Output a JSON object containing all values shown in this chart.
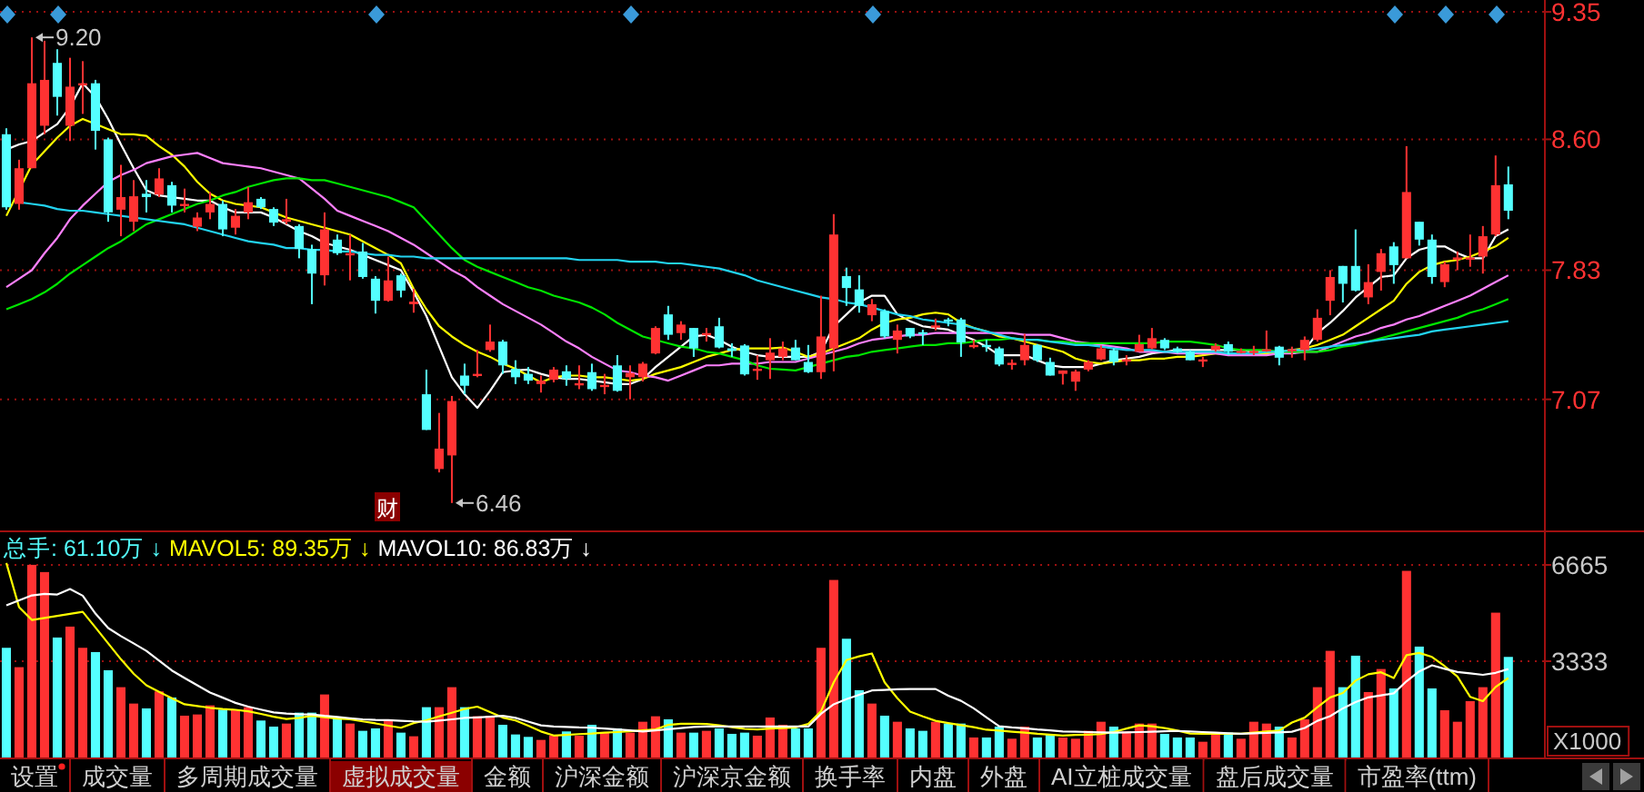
{
  "chart_data": [
    {
      "type": "candlestick",
      "categories": [
        null,
        null,
        null,
        null,
        null,
        null,
        null,
        null,
        null,
        null,
        null,
        null,
        null,
        null,
        null,
        null,
        null,
        null,
        null,
        null,
        null,
        null,
        null,
        null,
        null,
        null,
        null,
        null,
        null,
        null,
        null,
        null,
        null,
        null,
        null,
        null,
        null,
        null,
        null,
        null,
        null,
        null,
        null,
        null,
        null,
        null,
        null,
        null,
        null,
        null,
        null,
        null,
        null,
        null,
        null,
        null,
        null,
        null,
        null,
        null,
        null,
        null,
        null,
        null,
        null,
        null,
        null,
        null,
        null,
        null,
        null,
        null,
        null,
        null,
        null,
        null,
        null,
        null,
        null,
        null,
        null,
        null,
        null,
        null,
        null,
        null,
        null,
        null,
        null,
        null,
        null,
        null,
        null,
        null,
        null,
        null,
        null,
        null,
        null,
        null,
        null,
        null,
        null,
        null,
        null,
        null,
        null,
        null,
        null,
        null,
        null,
        null,
        null,
        null,
        null,
        null,
        null,
        null,
        null
      ],
      "ylim": [
        6.32,
        9.42
      ],
      "yticks": [
        9.35,
        {
          "value": 8.6,
          "label": "8.60"
        },
        7.83,
        7.07
      ],
      "tick_labels": "y",
      "grid": "y",
      "ohlc": [
        [
          8.63,
          8.665,
          8.186,
          8.2
        ],
        [
          8.22,
          8.48,
          8.186,
          8.43
        ],
        [
          8.43,
          9.2,
          8.43,
          8.93
        ],
        [
          8.68,
          9.18,
          8.63,
          8.95
        ],
        [
          9.05,
          9.13,
          8.74,
          8.85
        ],
        [
          8.68,
          9.08,
          8.59,
          8.91
        ],
        [
          8.92,
          9.06,
          8.75,
          8.93
        ],
        [
          8.93,
          8.95,
          8.54,
          8.65
        ],
        [
          8.6,
          8.61,
          8.115,
          8.17
        ],
        [
          8.186,
          8.45,
          8.03,
          8.26
        ],
        [
          8.115,
          8.36,
          8.06,
          8.265
        ],
        [
          8.28,
          8.36,
          8.17,
          8.26
        ],
        [
          8.275,
          8.43,
          8.26,
          8.37
        ],
        [
          8.33,
          8.35,
          8.17,
          8.21
        ],
        [
          8.21,
          8.31,
          8.17,
          8.22
        ],
        [
          8.086,
          8.17,
          8.06,
          8.14
        ],
        [
          8.17,
          8.29,
          8.13,
          8.22
        ],
        [
          8.22,
          8.24,
          8.03,
          8.07
        ],
        [
          8.08,
          8.19,
          8.04,
          8.15
        ],
        [
          8.17,
          8.32,
          8.13,
          8.23
        ],
        [
          8.25,
          8.26,
          8.19,
          8.2
        ],
        [
          8.19,
          8.2,
          8.09,
          8.11
        ],
        [
          8.115,
          8.25,
          8.1,
          8.13
        ],
        [
          8.09,
          8.1,
          7.9,
          7.955
        ],
        [
          7.955,
          7.98,
          7.63,
          7.81
        ],
        [
          7.8,
          8.17,
          7.74,
          8.07
        ],
        [
          8.01,
          8.04,
          7.92,
          7.93
        ],
        [
          7.92,
          8.04,
          7.77,
          7.93
        ],
        [
          7.94,
          7.99,
          7.78,
          7.79
        ],
        [
          7.78,
          7.795,
          7.575,
          7.65
        ],
        [
          7.65,
          7.91,
          7.645,
          7.77
        ],
        [
          7.8,
          7.81,
          7.67,
          7.71
        ],
        [
          7.63,
          7.72,
          7.58,
          7.645
        ],
        [
          7.1,
          7.245,
          6.89,
          6.89
        ],
        [
          6.66,
          6.99,
          6.64,
          6.78
        ],
        [
          6.74,
          7.09,
          6.46,
          7.06
        ],
        [
          7.21,
          7.28,
          7.1,
          7.15
        ],
        [
          7.21,
          7.36,
          7.2,
          7.22
        ],
        [
          7.36,
          7.51,
          7.35,
          7.41
        ],
        [
          7.41,
          7.42,
          7.22,
          7.27
        ],
        [
          7.25,
          7.3,
          7.16,
          7.2
        ],
        [
          7.22,
          7.26,
          7.16,
          7.18
        ],
        [
          7.16,
          7.21,
          7.11,
          7.18
        ],
        [
          7.185,
          7.26,
          7.17,
          7.245
        ],
        [
          7.235,
          7.27,
          7.15,
          7.19
        ],
        [
          7.16,
          7.27,
          7.13,
          7.165
        ],
        [
          7.23,
          7.28,
          7.12,
          7.13
        ],
        [
          7.145,
          7.22,
          7.1,
          7.155
        ],
        [
          7.27,
          7.33,
          7.115,
          7.12
        ],
        [
          7.2,
          7.27,
          7.07,
          7.225
        ],
        [
          7.2,
          7.29,
          7.175,
          7.28
        ],
        [
          7.34,
          7.5,
          7.335,
          7.49
        ],
        [
          7.57,
          7.62,
          7.42,
          7.45
        ],
        [
          7.46,
          7.53,
          7.42,
          7.51
        ],
        [
          7.49,
          7.49,
          7.32,
          7.37
        ],
        [
          7.455,
          7.49,
          7.41,
          7.46
        ],
        [
          7.5,
          7.55,
          7.37,
          7.375
        ],
        [
          7.37,
          7.4,
          7.32,
          7.355
        ],
        [
          7.387,
          7.395,
          7.21,
          7.217
        ],
        [
          7.245,
          7.33,
          7.185,
          7.25
        ],
        [
          7.3,
          7.43,
          7.19,
          7.345
        ],
        [
          7.32,
          7.41,
          7.3,
          7.37
        ],
        [
          7.375,
          7.42,
          7.3,
          7.3
        ],
        [
          7.29,
          7.39,
          7.225,
          7.23
        ],
        [
          7.23,
          7.68,
          7.19,
          7.44
        ],
        [
          7.37,
          8.16,
          7.235,
          8.04
        ],
        [
          7.795,
          7.845,
          7.62,
          7.725
        ],
        [
          7.717,
          7.8,
          7.58,
          7.62
        ],
        [
          7.565,
          7.66,
          7.53,
          7.63
        ],
        [
          7.59,
          7.6,
          7.43,
          7.44
        ],
        [
          7.42,
          7.51,
          7.34,
          7.475
        ],
        [
          7.49,
          7.49,
          7.43,
          7.44
        ],
        [
          7.465,
          7.48,
          7.39,
          7.455
        ],
        [
          7.5,
          7.545,
          7.475,
          7.505
        ],
        [
          7.54,
          7.55,
          7.5,
          7.535
        ],
        [
          7.54,
          7.55,
          7.32,
          7.405
        ],
        [
          7.385,
          7.42,
          7.37,
          7.39
        ],
        [
          7.39,
          7.42,
          7.35,
          7.385
        ],
        [
          7.37,
          7.38,
          7.265,
          7.275
        ],
        [
          7.28,
          7.305,
          7.245,
          7.285
        ],
        [
          7.3,
          7.455,
          7.27,
          7.39
        ],
        [
          7.39,
          7.395,
          7.29,
          7.3
        ],
        [
          7.29,
          7.315,
          7.21,
          7.21
        ],
        [
          7.22,
          7.24,
          7.157,
          7.24
        ],
        [
          7.174,
          7.245,
          7.12,
          7.234
        ],
        [
          7.245,
          7.3,
          7.235,
          7.29
        ],
        [
          7.305,
          7.387,
          7.3,
          7.37
        ],
        [
          7.36,
          7.37,
          7.27,
          7.29
        ],
        [
          7.3,
          7.33,
          7.27,
          7.305
        ],
        [
          7.35,
          7.45,
          7.35,
          7.395
        ],
        [
          7.37,
          7.49,
          7.365,
          7.43
        ],
        [
          7.42,
          7.43,
          7.36,
          7.37
        ],
        [
          7.37,
          7.38,
          7.34,
          7.35
        ],
        [
          7.35,
          7.36,
          7.3,
          7.3
        ],
        [
          7.3,
          7.32,
          7.26,
          7.305
        ],
        [
          7.36,
          7.4,
          7.35,
          7.385
        ],
        [
          7.395,
          7.41,
          7.33,
          7.35
        ],
        [
          7.35,
          7.37,
          7.34,
          7.355
        ],
        [
          7.35,
          7.385,
          7.33,
          7.355
        ],
        [
          7.36,
          7.475,
          7.35,
          7.365
        ],
        [
          7.38,
          7.385,
          7.27,
          7.315
        ],
        [
          7.355,
          7.38,
          7.315,
          7.365
        ],
        [
          7.36,
          7.44,
          7.3,
          7.42
        ],
        [
          7.42,
          7.6,
          7.41,
          7.55
        ],
        [
          7.65,
          7.83,
          7.565,
          7.79
        ],
        [
          7.855,
          7.855,
          7.64,
          7.75
        ],
        [
          7.855,
          8.07,
          7.705,
          7.71
        ],
        [
          7.67,
          7.865,
          7.63,
          7.76
        ],
        [
          7.82,
          7.955,
          7.71,
          7.93
        ],
        [
          7.97,
          7.995,
          7.75,
          7.86
        ],
        [
          7.9,
          8.56,
          7.9,
          8.29
        ],
        [
          8.115,
          8.115,
          7.975,
          8.01
        ],
        [
          8.01,
          8.04,
          7.75,
          7.79
        ],
        [
          7.76,
          7.88,
          7.73,
          7.865
        ],
        [
          7.9,
          7.94,
          7.83,
          7.905
        ],
        [
          7.9,
          8.04,
          7.85,
          7.905
        ],
        [
          7.91,
          8.09,
          7.81,
          8.03
        ],
        [
          8.04,
          8.505,
          8.03,
          8.33
        ],
        [
          8.335,
          8.44,
          8.13,
          8.18
        ]
      ],
      "series": [
        {
          "type": "line",
          "color": "#ffffff",
          "values": [
            8.54,
            8.57,
            8.59,
            8.64,
            8.69,
            8.79,
            8.93,
            8.85,
            8.72,
            8.57,
            8.43,
            8.3,
            8.27,
            8.26,
            8.25,
            8.24,
            8.24,
            8.2,
            8.17,
            8.17,
            8.17,
            8.14,
            8.1,
            8.06,
            8.03,
            7.99,
            7.97,
            7.95,
            7.92,
            7.89,
            7.86,
            7.83,
            7.7,
            7.56,
            7.38,
            7.2,
            7.1,
            7.02,
            7.12,
            7.23,
            7.24,
            7.245,
            7.22,
            7.2,
            7.19,
            7.19,
            7.18,
            7.17,
            7.16,
            7.16,
            7.19,
            7.26,
            7.32,
            7.38,
            7.44,
            7.45,
            7.42,
            7.38,
            7.35,
            7.33,
            7.32,
            7.32,
            7.32,
            7.32,
            7.35,
            7.5,
            7.57,
            7.64,
            7.68,
            7.68,
            7.57,
            7.53,
            7.5,
            7.49,
            7.48,
            7.45,
            7.42,
            7.38,
            7.33,
            7.33,
            7.33,
            7.3,
            7.27,
            7.26,
            7.26,
            7.26,
            7.28,
            7.3,
            7.31,
            7.32,
            7.34,
            7.35,
            7.36,
            7.36,
            7.36,
            7.36,
            7.36,
            7.36,
            7.35,
            7.35,
            7.35,
            7.34,
            7.36,
            7.46,
            7.52,
            7.59,
            7.67,
            7.73,
            7.79,
            7.8,
            7.9,
            7.95,
            7.97,
            7.97,
            7.93,
            7.9,
            7.9,
            8.03,
            8.07
          ]
        },
        {
          "type": "line",
          "color": "#ffff00",
          "values": [
            8.15,
            8.3,
            8.45,
            8.53,
            8.61,
            8.68,
            8.72,
            8.69,
            8.66,
            8.63,
            8.63,
            8.62,
            8.56,
            8.51,
            8.44,
            8.35,
            8.28,
            8.24,
            8.22,
            8.21,
            8.2,
            8.17,
            8.14,
            8.12,
            8.1,
            8.08,
            8.06,
            8.04,
            8,
            7.96,
            7.92,
            7.87,
            7.72,
            7.6,
            7.5,
            7.44,
            7.39,
            7.35,
            7.32,
            7.28,
            7.25,
            7.21,
            7.17,
            7.2,
            7.21,
            7.21,
            7.2,
            7.2,
            7.19,
            7.18,
            7.19,
            7.22,
            7.24,
            7.26,
            7.29,
            7.32,
            7.34,
            7.36,
            7.37,
            7.37,
            7.37,
            7.375,
            7.35,
            7.32,
            7.34,
            7.37,
            7.4,
            7.43,
            7.48,
            7.52,
            7.54,
            7.55,
            7.57,
            7.58,
            7.57,
            7.52,
            7.49,
            7.47,
            7.44,
            7.43,
            7.41,
            7.39,
            7.37,
            7.35,
            7.31,
            7.29,
            7.28,
            7.29,
            7.3,
            7.3,
            7.31,
            7.31,
            7.32,
            7.32,
            7.33,
            7.34,
            7.34,
            7.34,
            7.34,
            7.34,
            7.35,
            7.36,
            7.37,
            7.39,
            7.42,
            7.45,
            7.5,
            7.55,
            7.6,
            7.65,
            7.75,
            7.82,
            7.86,
            7.88,
            7.89,
            7.91,
            7.94,
            7.97,
            8.02
          ]
        },
        {
          "type": "line",
          "color": "#ff80ff",
          "values": [
            7.73,
            7.78,
            7.83,
            7.93,
            8.02,
            8.13,
            8.21,
            8.28,
            8.35,
            8.39,
            8.42,
            8.46,
            8.48,
            8.5,
            8.51,
            8.52,
            8.49,
            8.46,
            8.45,
            8.44,
            8.43,
            8.41,
            8.39,
            8.37,
            8.31,
            8.25,
            8.18,
            8.15,
            8.12,
            8.09,
            8.06,
            8.02,
            7.98,
            7.93,
            7.88,
            7.83,
            7.79,
            7.73,
            7.68,
            7.63,
            7.59,
            7.55,
            7.51,
            7.46,
            7.41,
            7.37,
            7.32,
            7.28,
            7.24,
            7.23,
            7.21,
            7.2,
            7.18,
            7.21,
            7.24,
            7.27,
            7.27,
            7.28,
            7.28,
            7.28,
            7.29,
            7.29,
            7.29,
            7.31,
            7.33,
            7.35,
            7.37,
            7.4,
            7.42,
            7.43,
            7.44,
            7.45,
            7.45,
            7.46,
            7.46,
            7.46,
            7.46,
            7.46,
            7.46,
            7.46,
            7.45,
            7.45,
            7.45,
            7.43,
            7.41,
            7.4,
            7.39,
            7.38,
            7.37,
            7.35,
            7.35,
            7.35,
            7.34,
            7.34,
            7.34,
            7.34,
            7.33,
            7.33,
            7.33,
            7.33,
            7.34,
            7.34,
            7.35,
            7.35,
            7.38,
            7.41,
            7.44,
            7.46,
            7.49,
            7.51,
            7.54,
            7.56,
            7.59,
            7.62,
            7.65,
            7.68,
            7.72,
            7.76,
            7.8
          ]
        },
        {
          "type": "line",
          "color": "#00e600",
          "values": [
            7.6,
            7.63,
            7.66,
            7.7,
            7.75,
            7.81,
            7.86,
            7.91,
            7.96,
            8,
            8.05,
            8.1,
            8.13,
            8.16,
            8.19,
            8.22,
            8.24,
            8.27,
            8.29,
            8.32,
            8.34,
            8.36,
            8.37,
            8.37,
            8.36,
            8.36,
            8.34,
            8.32,
            8.3,
            8.28,
            8.26,
            8.23,
            8.2,
            8.12,
            8.04,
            7.96,
            7.89,
            7.85,
            7.82,
            7.79,
            7.76,
            7.73,
            7.71,
            7.68,
            7.66,
            7.64,
            7.61,
            7.57,
            7.52,
            7.48,
            7.44,
            7.42,
            7.4,
            7.38,
            7.37,
            7.35,
            7.34,
            7.32,
            7.3,
            7.27,
            7.25,
            7.245,
            7.24,
            7.26,
            7.28,
            7.3,
            7.32,
            7.33,
            7.35,
            7.36,
            7.37,
            7.38,
            7.39,
            7.39,
            7.4,
            7.4,
            7.41,
            7.42,
            7.42,
            7.43,
            7.42,
            7.42,
            7.41,
            7.41,
            7.4,
            7.4,
            7.4,
            7.4,
            7.4,
            7.4,
            7.4,
            7.41,
            7.41,
            7.41,
            7.4,
            7.39,
            7.37,
            7.36,
            7.36,
            7.36,
            7.35,
            7.35,
            7.35,
            7.35,
            7.36,
            7.38,
            7.39,
            7.41,
            7.43,
            7.45,
            7.47,
            7.49,
            7.51,
            7.53,
            7.55,
            7.58,
            7.6,
            7.63,
            7.66
          ]
        },
        {
          "type": "line",
          "color": "#22d3f0",
          "values": [
            null,
            8.23,
            8.22,
            8.21,
            8.19,
            8.18,
            8.18,
            8.17,
            8.16,
            8.15,
            8.14,
            8.13,
            8.12,
            8.11,
            8.1,
            8.08,
            8.06,
            8.04,
            8.02,
            8,
            7.99,
            7.98,
            7.96,
            7.96,
            7.95,
            7.95,
            7.94,
            7.94,
            7.93,
            7.92,
            7.92,
            7.91,
            7.91,
            7.9,
            7.9,
            7.9,
            7.9,
            7.9,
            7.9,
            7.9,
            7.9,
            7.9,
            7.9,
            7.9,
            7.9,
            7.89,
            7.89,
            7.89,
            7.89,
            7.88,
            7.88,
            7.88,
            7.87,
            7.87,
            7.86,
            7.85,
            7.84,
            7.82,
            7.8,
            7.77,
            7.75,
            7.73,
            7.71,
            7.69,
            7.67,
            7.66,
            7.64,
            7.63,
            7.61,
            7.59,
            7.57,
            7.56,
            7.54,
            7.53,
            7.52,
            7.51,
            7.49,
            7.47,
            7.45,
            7.43,
            7.42,
            7.42,
            7.41,
            7.4,
            7.39,
            7.39,
            7.38,
            7.37,
            7.36,
            7.36,
            7.36,
            7.35,
            7.35,
            7.35,
            7.35,
            7.35,
            7.34,
            7.34,
            7.34,
            7.35,
            7.35,
            7.36,
            7.36,
            7.37,
            7.38,
            7.39,
            7.4,
            7.41,
            7.42,
            7.43,
            7.44,
            7.45,
            7.47,
            7.48,
            7.49,
            7.5,
            7.51,
            7.52,
            7.53
          ]
        }
      ],
      "annotations": [
        "9.20",
        "6.46",
        "财"
      ]
    },
    {
      "type": "bar",
      "categories": [
        null,
        null,
        null,
        null,
        null,
        null,
        null,
        null,
        null,
        null,
        null,
        null,
        null,
        null,
        null,
        null,
        null,
        null,
        null,
        null,
        null,
        null,
        null,
        null,
        null,
        null,
        null,
        null,
        null,
        null,
        null,
        null,
        null,
        null,
        null,
        null,
        null,
        null,
        null,
        null,
        null,
        null,
        null,
        null,
        null,
        null,
        null,
        null,
        null,
        null,
        null,
        null,
        null,
        null,
        null,
        null,
        null,
        null,
        null,
        null,
        null,
        null,
        null,
        null,
        null,
        null,
        null,
        null,
        null,
        null,
        null,
        null,
        null,
        null,
        null,
        null,
        null,
        null,
        null,
        null,
        null,
        null,
        null,
        null,
        null,
        null,
        null,
        null,
        null,
        null,
        null,
        null,
        null,
        null,
        null,
        null,
        null,
        null,
        null,
        null,
        null,
        null,
        null,
        null,
        null,
        null,
        null,
        null,
        null,
        null,
        null,
        null,
        null,
        null,
        null,
        null,
        null,
        null,
        null
      ],
      "ylim": [
        0,
        7670
      ],
      "yticks": [
        6665,
        3333
      ],
      "ylabel": "X1000",
      "tick_labels": "y",
      "grid": "y",
      "series": [
        {
          "values": [
            3796,
            3125,
            6668,
            6417,
            4152,
            4530,
            3796,
            3649,
            3020,
            2433,
            1866,
            1699,
            2286,
            2076,
            1447,
            1489,
            1803,
            1657,
            1657,
            1741,
            1279,
            1069,
            1174,
            1552,
            1552,
            2181,
            1384,
            1174,
            923,
            1007,
            1321,
            860,
            734,
            1741,
            1741,
            2433,
            1741,
            1426,
            1447,
            1132,
            797,
            713,
            608,
            755,
            902,
            755,
            1132,
            860,
            1007,
            860,
            1237,
            1426,
            1321,
            860,
            860,
            923,
            1007,
            818,
            860,
            755,
            1384,
            1132,
            1007,
            1007,
            3796,
            6144,
            4110,
            2328,
            1866,
            1447,
            1237,
            1007,
            923,
            1237,
            1174,
            1174,
            692,
            692,
            1069,
            650,
            1069,
            692,
            797,
            692,
            650,
            923,
            1237,
            1069,
            902,
            1174,
            1174,
            818,
            692,
            692,
            545,
            860,
            860,
            650,
            1237,
            1174,
            1069,
            692,
            1321,
            2433,
            3691,
            2433,
            3523,
            2265,
            3062,
            2391,
            6459,
            3838,
            2391,
            1636,
            1237,
            1950,
            2433,
            5012,
            3481
          ],
          "colors": [
            "#54ffff",
            "#ff3232",
            "#ff3232",
            "#ff3232",
            "#54ffff",
            "#ff3232",
            "#ff3232",
            "#54ffff",
            "#54ffff",
            "#ff3232",
            "#ff3232",
            "#54ffff",
            "#ff3232",
            "#54ffff",
            "#ff3232",
            "#ff3232",
            "#ff3232",
            "#54ffff",
            "#ff3232",
            "#ff3232",
            "#54ffff",
            "#54ffff",
            "#ff3232",
            "#54ffff",
            "#54ffff",
            "#ff3232",
            "#54ffff",
            "#ff3232",
            "#54ffff",
            "#54ffff",
            "#ff3232",
            "#54ffff",
            "#ff3232",
            "#54ffff",
            "#ff3232",
            "#ff3232",
            "#54ffff",
            "#ff3232",
            "#ff3232",
            "#54ffff",
            "#54ffff",
            "#54ffff",
            "#ff3232",
            "#ff3232",
            "#54ffff",
            "#ff3232",
            "#54ffff",
            "#ff3232",
            "#54ffff",
            "#ff3232",
            "#ff3232",
            "#ff3232",
            "#54ffff",
            "#ff3232",
            "#54ffff",
            "#ff3232",
            "#54ffff",
            "#54ffff",
            "#54ffff",
            "#ff3232",
            "#ff3232",
            "#ff3232",
            "#54ffff",
            "#54ffff",
            "#ff3232",
            "#ff3232",
            "#54ffff",
            "#54ffff",
            "#ff3232",
            "#54ffff",
            "#ff3232",
            "#54ffff",
            "#54ffff",
            "#ff3232",
            "#54ffff",
            "#54ffff",
            "#ff3232",
            "#54ffff",
            "#54ffff",
            "#ff3232",
            "#ff3232",
            "#54ffff",
            "#54ffff",
            "#ff3232",
            "#ff3232",
            "#ff3232",
            "#ff3232",
            "#54ffff",
            "#ff3232",
            "#ff3232",
            "#ff3232",
            "#54ffff",
            "#54ffff",
            "#54ffff",
            "#ff3232",
            "#ff3232",
            "#54ffff",
            "#ff3232",
            "#ff3232",
            "#ff3232",
            "#54ffff",
            "#ff3232",
            "#ff3232",
            "#ff3232",
            "#ff3232",
            "#54ffff",
            "#54ffff",
            "#ff3232",
            "#ff3232",
            "#54ffff",
            "#ff3232",
            "#54ffff",
            "#54ffff",
            "#ff3232",
            "#ff3232",
            "#ff3232",
            "#ff3232",
            "#ff3232",
            "#54ffff"
          ]
        },
        {
          "type": "line",
          "color": "#ffff00",
          "values": [
            6731,
            5200,
            4760,
            4830,
            4900,
            4970,
            5040,
            4500,
            3950,
            3400,
            2900,
            2500,
            2270,
            2050,
            1840,
            1780,
            1720,
            1680,
            1650,
            1600,
            1510,
            1410,
            1330,
            1370,
            1440,
            1390,
            1350,
            1320,
            1250,
            1180,
            1100,
            1030,
            1190,
            1290,
            1420,
            1550,
            1680,
            1760,
            1570,
            1380,
            1280,
            1100,
            900,
            760,
            780,
            810,
            830,
            860,
            880,
            910,
            940,
            970,
            1130,
            1170,
            1170,
            1160,
            1110,
            1050,
            990,
            970,
            1000,
            1020,
            1040,
            1160,
            1600,
            2600,
            3370,
            3500,
            3600,
            2600,
            2050,
            1590,
            1420,
            1270,
            1190,
            1120,
            1050,
            960,
            930,
            890,
            860,
            820,
            790,
            760,
            780,
            790,
            810,
            880,
            1000,
            1110,
            1080,
            1020,
            930,
            830,
            820,
            820,
            820,
            820,
            860,
            900,
            930,
            1210,
            1380,
            1740,
            2080,
            2230,
            2660,
            2880,
            2950,
            2750,
            3540,
            3620,
            3480,
            3160,
            2800,
            2100,
            1950,
            2440,
            2750
          ]
        },
        {
          "type": "line",
          "color": "#ffffff",
          "values": [
            5263,
            5440,
            5610,
            5660,
            5640,
            5830,
            5600,
            4980,
            4480,
            4200,
            3950,
            3690,
            3350,
            3010,
            2750,
            2500,
            2250,
            2070,
            1890,
            1760,
            1660,
            1560,
            1520,
            1500,
            1490,
            1440,
            1400,
            1360,
            1320,
            1300,
            1290,
            1270,
            1250,
            1240,
            1280,
            1320,
            1370,
            1390,
            1410,
            1440,
            1370,
            1240,
            1110,
            1070,
            1060,
            1040,
            1030,
            1000,
            970,
            940,
            900,
            940,
            980,
            1020,
            1060,
            1070,
            1070,
            1070,
            1070,
            1070,
            1070,
            1070,
            1070,
            1070,
            1510,
            1840,
            2020,
            2170,
            2320,
            2340,
            2360,
            2370,
            2370,
            2370,
            2140,
            1960,
            1700,
            1390,
            1080,
            1040,
            1010,
            970,
            940,
            900,
            890,
            880,
            870,
            860,
            870,
            880,
            890,
            910,
            920,
            900,
            880,
            860,
            840,
            820,
            840,
            850,
            870,
            890,
            1020,
            1270,
            1430,
            1700,
            1920,
            2080,
            2150,
            2220,
            2640,
            2980,
            3190,
            3070,
            2960,
            2910,
            2860,
            2930,
            3060
          ]
        }
      ],
      "annotations": [
        "总手: 61.10万 ↓",
        "MAVOL5: 89.35万 ↓",
        "MAVOL10: 86.83万 ↓"
      ]
    },
    {
      "type": "other",
      "annotations": [
        "设置",
        "成交量",
        "多周期成交量",
        "虚拟成交量",
        "金额",
        "沪深金额",
        "沪深京金额",
        "换手率",
        "内盘",
        "外盘",
        "AI立桩成交量",
        "盘后成交量",
        "市盈率(ttm)"
      ]
    }
  ]
}
